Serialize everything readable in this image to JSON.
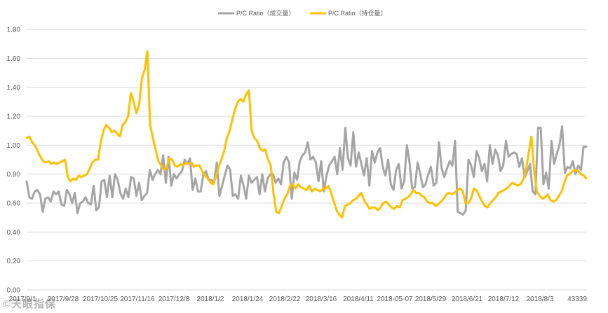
{
  "chart_data": {
    "type": "line",
    "title": "",
    "xlabel": "",
    "ylabel": "",
    "ylim": [
      0,
      1.8
    ],
    "y_ticks": [
      "0.00",
      "0.20",
      "0.40",
      "0.60",
      "0.80",
      "1.00",
      "1.20",
      "1.40",
      "1.60",
      "1.80"
    ],
    "x_tick_labels": [
      "2017/9/1",
      "2017/9/28",
      "2017/10/25",
      "2017/11/16",
      "2017/12/8",
      "2018/1/2",
      "2018/1/24",
      "2018/2/22",
      "2018/3/16",
      "2018/4/11",
      "2018-05-07",
      "2018/5/29",
      "2018/6/21",
      "2018/7/12",
      "2018/8/3",
      "43339"
    ],
    "grid": true,
    "legend_position": "top",
    "series": [
      {
        "name": "P/C Ratio（成交量）",
        "color": "#a5a5a5",
        "values": [
          0.75,
          0.64,
          0.63,
          0.68,
          0.69,
          0.66,
          0.54,
          0.63,
          0.64,
          0.61,
          0.68,
          0.66,
          0.68,
          0.59,
          0.58,
          0.69,
          0.66,
          0.6,
          0.67,
          0.53,
          0.6,
          0.61,
          0.64,
          0.6,
          0.59,
          0.72,
          0.55,
          0.57,
          0.75,
          0.76,
          0.64,
          0.79,
          0.64,
          0.8,
          0.76,
          0.67,
          0.63,
          0.7,
          0.64,
          0.78,
          0.77,
          0.65,
          0.74,
          0.62,
          0.65,
          0.67,
          0.83,
          0.76,
          0.8,
          0.83,
          0.8,
          0.93,
          0.74,
          0.92,
          0.72,
          0.8,
          0.77,
          0.8,
          0.82,
          0.9,
          0.87,
          0.91,
          0.69,
          0.77,
          0.68,
          0.68,
          0.8,
          0.82,
          0.76,
          0.76,
          0.74,
          0.88,
          0.65,
          0.72,
          0.79,
          0.86,
          0.83,
          0.65,
          0.66,
          0.63,
          0.79,
          0.72,
          0.63,
          0.79,
          0.74,
          0.76,
          0.78,
          0.66,
          0.8,
          0.68,
          0.77,
          0.8,
          0.8,
          0.74,
          0.77,
          0.73,
          0.88,
          0.92,
          0.88,
          0.63,
          0.81,
          0.76,
          0.89,
          0.93,
          0.95,
          1.02,
          0.9,
          0.92,
          0.88,
          0.75,
          0.89,
          0.68,
          0.79,
          0.86,
          0.89,
          0.92,
          0.8,
          0.98,
          0.83,
          1.12,
          0.91,
          0.86,
          1.09,
          0.85,
          0.95,
          0.87,
          0.79,
          0.91,
          0.72,
          0.96,
          0.88,
          0.95,
          0.98,
          0.85,
          0.79,
          0.9,
          0.73,
          0.69,
          0.83,
          0.87,
          0.7,
          0.75,
          1.0,
          0.88,
          0.7,
          0.71,
          0.88,
          0.8,
          0.71,
          0.73,
          0.8,
          0.85,
          0.72,
          0.74,
          1.02,
          0.84,
          0.78,
          0.84,
          0.89,
          0.86,
          1.03,
          0.54,
          0.53,
          0.52,
          0.55,
          0.9,
          0.86,
          0.78,
          0.96,
          0.91,
          0.82,
          0.87,
          0.75,
          1.0,
          0.87,
          0.97,
          0.93,
          0.82,
          0.86,
          1.03,
          0.92,
          0.94,
          0.95,
          0.94,
          0.85,
          0.91,
          0.78,
          0.82,
          0.87,
          0.68,
          0.66,
          1.12,
          1.12,
          0.73,
          0.81,
          0.7,
          1.03,
          0.87,
          0.94,
          1.0,
          1.13,
          0.81,
          0.85,
          0.84,
          0.89,
          0.8,
          0.86,
          0.83,
          0.99,
          0.99
        ]
      },
      {
        "name": "P/C Ratio（持仓量）",
        "color": "#ffc000",
        "values": [
          1.05,
          1.06,
          1.02,
          1.0,
          0.96,
          0.92,
          0.89,
          0.88,
          0.89,
          0.87,
          0.88,
          0.87,
          0.88,
          0.89,
          0.9,
          0.78,
          0.75,
          0.77,
          0.76,
          0.79,
          0.78,
          0.79,
          0.8,
          0.84,
          0.88,
          0.9,
          0.9,
          1.02,
          1.1,
          1.14,
          1.12,
          1.09,
          1.1,
          1.08,
          1.06,
          1.14,
          1.16,
          1.2,
          1.36,
          1.3,
          1.22,
          1.28,
          1.46,
          1.52,
          1.65,
          1.14,
          1.05,
          0.97,
          0.89,
          0.86,
          0.83,
          0.84,
          0.91,
          0.9,
          0.86,
          0.85,
          0.87,
          0.86,
          0.88,
          0.87,
          0.88,
          0.85,
          0.86,
          0.86,
          0.82,
          0.79,
          0.77,
          0.74,
          0.73,
          0.78,
          0.85,
          0.9,
          0.96,
          1.05,
          1.1,
          1.18,
          1.25,
          1.3,
          1.32,
          1.3,
          1.35,
          1.38,
          1.1,
          1.05,
          1.03,
          0.98,
          0.96,
          0.97,
          0.9,
          0.86,
          0.66,
          0.54,
          0.53,
          0.58,
          0.63,
          0.66,
          0.72,
          0.73,
          0.7,
          0.73,
          0.71,
          0.7,
          0.69,
          0.72,
          0.68,
          0.7,
          0.69,
          0.68,
          0.7,
          0.7,
          0.72,
          0.67,
          0.61,
          0.55,
          0.52,
          0.5,
          0.58,
          0.59,
          0.6,
          0.62,
          0.63,
          0.65,
          0.67,
          0.62,
          0.59,
          0.56,
          0.57,
          0.57,
          0.55,
          0.57,
          0.6,
          0.61,
          0.59,
          0.57,
          0.56,
          0.58,
          0.57,
          0.62,
          0.63,
          0.64,
          0.66,
          0.69,
          0.67,
          0.67,
          0.65,
          0.64,
          0.61,
          0.6,
          0.6,
          0.58,
          0.59,
          0.61,
          0.63,
          0.66,
          0.67,
          0.66,
          0.67,
          0.69,
          0.7,
          0.68,
          0.6,
          0.6,
          0.63,
          0.7,
          0.69,
          0.65,
          0.61,
          0.58,
          0.57,
          0.6,
          0.62,
          0.64,
          0.67,
          0.68,
          0.69,
          0.7,
          0.72,
          0.74,
          0.73,
          0.72,
          0.73,
          0.76,
          0.82,
          0.95,
          1.06,
          0.82,
          0.68,
          0.65,
          0.63,
          0.64,
          0.66,
          0.62,
          0.61,
          0.62,
          0.65,
          0.68,
          0.74,
          0.79,
          0.8,
          0.82,
          0.83,
          0.82,
          0.8,
          0.79,
          0.77
        ]
      }
    ]
  },
  "watermark": "©天眼指保"
}
